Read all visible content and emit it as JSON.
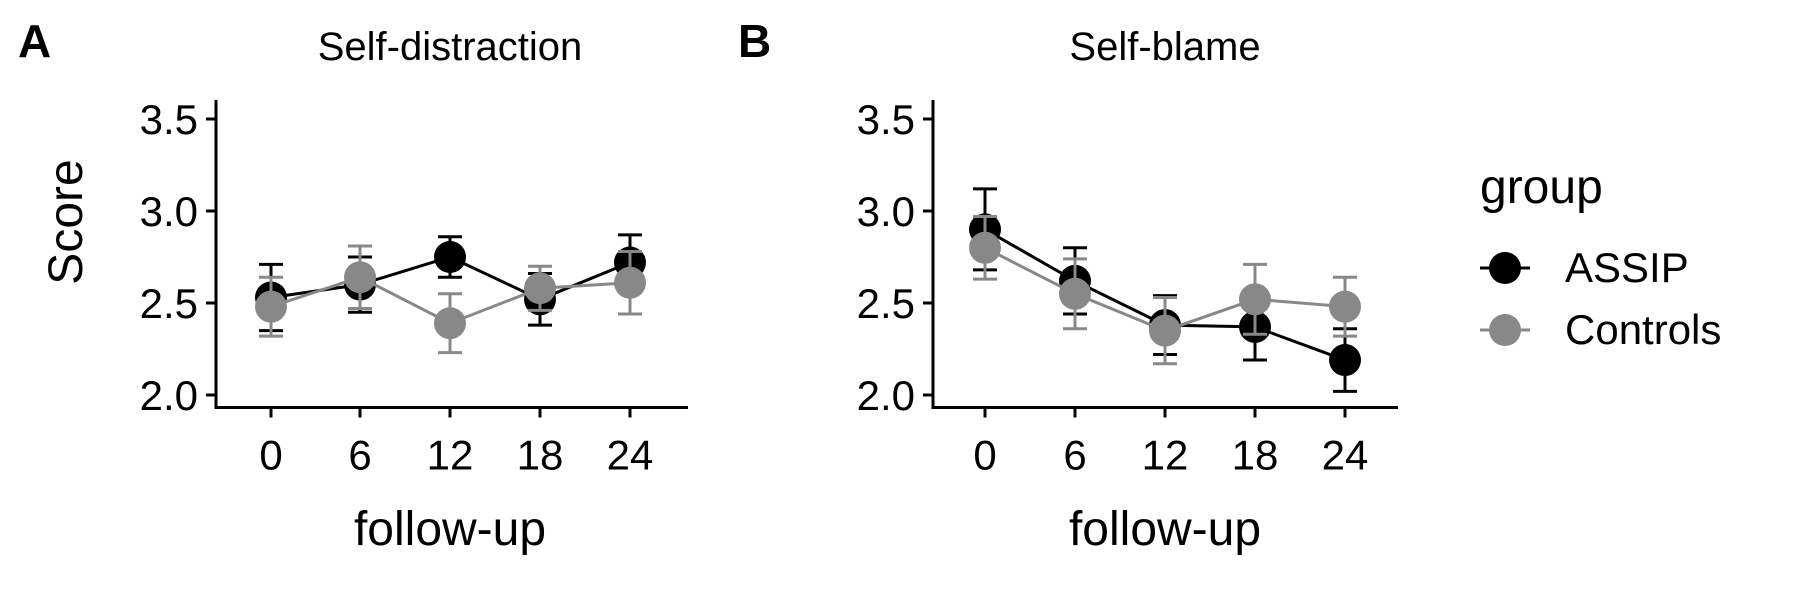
{
  "colors": {
    "ASSIP": "#000000",
    "Controls": "#888888",
    "axis": "#000000",
    "background": "#ffffff"
  },
  "legend": {
    "title": "group",
    "items": [
      "ASSIP",
      "Controls"
    ]
  },
  "chart_data": [
    {
      "type": "line",
      "panel_label": "A",
      "title": "Self-distraction",
      "xlabel": "follow-up",
      "ylabel": "Score",
      "x": [
        0,
        6,
        12,
        18,
        24
      ],
      "x_ticks": [
        "0",
        "6",
        "12",
        "18",
        "24"
      ],
      "y_ticks": [
        "2.0",
        "2.5",
        "3.0",
        "3.5"
      ],
      "ylim": [
        1.93,
        3.55
      ],
      "grid": false,
      "legend_position": "right",
      "series": [
        {
          "name": "ASSIP",
          "values": [
            2.53,
            2.6,
            2.75,
            2.52,
            2.72
          ],
          "error_low": [
            2.35,
            2.45,
            2.64,
            2.38,
            2.57
          ],
          "error_high": [
            2.71,
            2.75,
            2.86,
            2.66,
            2.87
          ]
        },
        {
          "name": "Controls",
          "values": [
            2.48,
            2.64,
            2.39,
            2.58,
            2.61
          ],
          "error_low": [
            2.32,
            2.47,
            2.23,
            2.46,
            2.44
          ],
          "error_high": [
            2.64,
            2.81,
            2.55,
            2.7,
            2.78
          ]
        }
      ]
    },
    {
      "type": "line",
      "panel_label": "B",
      "title": "Self-blame",
      "xlabel": "follow-up",
      "ylabel": "",
      "x": [
        0,
        6,
        12,
        18,
        24
      ],
      "x_ticks": [
        "0",
        "6",
        "12",
        "18",
        "24"
      ],
      "y_ticks": [
        "2.0",
        "2.5",
        "3.0",
        "3.5"
      ],
      "ylim": [
        1.93,
        3.55
      ],
      "grid": false,
      "series": [
        {
          "name": "ASSIP",
          "values": [
            2.9,
            2.62,
            2.38,
            2.37,
            2.19
          ],
          "error_low": [
            2.68,
            2.44,
            2.22,
            2.19,
            2.02
          ],
          "error_high": [
            3.12,
            2.8,
            2.54,
            2.55,
            2.36
          ]
        },
        {
          "name": "Controls",
          "values": [
            2.8,
            2.55,
            2.35,
            2.52,
            2.48
          ],
          "error_low": [
            2.63,
            2.36,
            2.17,
            2.33,
            2.32
          ],
          "error_high": [
            2.97,
            2.74,
            2.53,
            2.71,
            2.64
          ]
        }
      ]
    }
  ]
}
